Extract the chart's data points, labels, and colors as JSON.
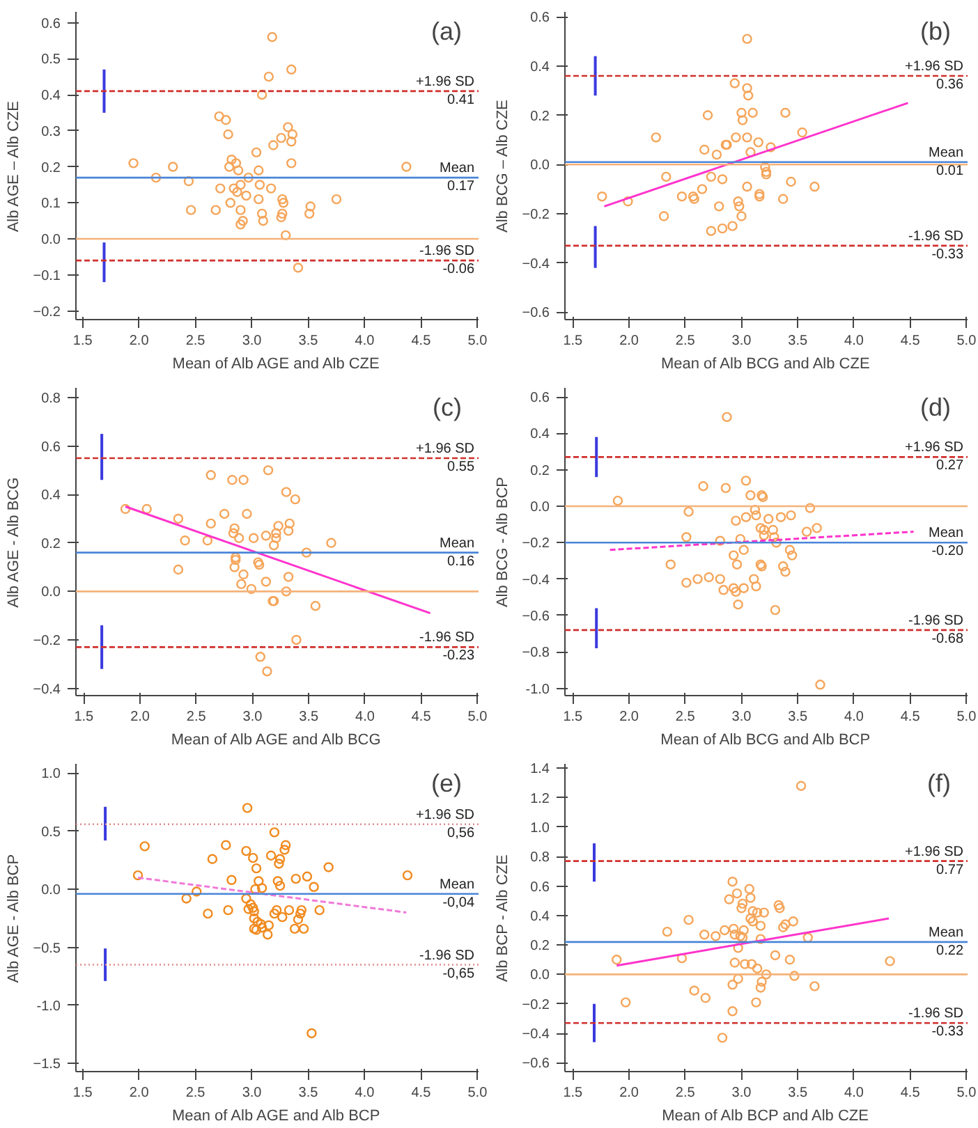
{
  "chart_data": [
    {
      "type": "scatter",
      "title": "(a)",
      "xlabel": "Mean of Alb AGE and Alb CZE",
      "ylabel": "Alb AGE – Alb CZE",
      "xlim": [
        1.44,
        5.01
      ],
      "ylim": [
        -0.224,
        0.63
      ],
      "xticks": [
        1.5,
        {
          "value": 2,
          "label": "2.0"
        },
        2.5,
        {
          "value": 3,
          "label": "3.0"
        },
        3.5,
        {
          "value": 4,
          "label": "4.0"
        },
        4.5,
        {
          "value": 5,
          "label": "5.0"
        }
      ],
      "yticks": [
        -0.2,
        -0.1,
        {
          "value": 0,
          "label": "0.0"
        },
        0.1,
        0.2,
        0.3,
        0.4,
        0.5,
        0.6
      ],
      "grid": false,
      "series": [
        {
          "marker": "circle",
          "color": "#f5a55a",
          "x": [
            3.18,
            3.35,
            3.15,
            3.09,
            2.71,
            2.77,
            2.79,
            3.32,
            3.26,
            3.36,
            3.35,
            3.19,
            3.04,
            1.95,
            2.3,
            2.82,
            2.86,
            2.8,
            3.35,
            4.37,
            3.06,
            2.88,
            2.15,
            2.97,
            2.44,
            2.72,
            2.84,
            3.07,
            3.17,
            2.9,
            2.87,
            2.95,
            2.81,
            3.06,
            3.27,
            3.28,
            3.75,
            2.46,
            2.68,
            2.9,
            3.52,
            3.09,
            3.27,
            3.26,
            3.51,
            2.92,
            2.9,
            3.1,
            3.3,
            3.41
          ],
          "values": [
            0.56,
            0.47,
            0.45,
            0.4,
            0.34,
            0.33,
            0.29,
            0.31,
            0.28,
            0.29,
            0.27,
            0.26,
            0.24,
            0.21,
            0.2,
            0.22,
            0.21,
            0.2,
            0.21,
            0.2,
            0.19,
            0.19,
            0.17,
            0.17,
            0.16,
            0.14,
            0.14,
            0.15,
            0.14,
            0.15,
            0.13,
            0.12,
            0.1,
            0.11,
            0.11,
            0.1,
            0.11,
            0.08,
            0.08,
            0.08,
            0.09,
            0.07,
            0.07,
            0.06,
            0.07,
            0.05,
            0.04,
            0.05,
            0.01,
            -0.08
          ]
        },
        {
          "type": "line",
          "marker": "none",
          "color": "#3a3adf",
          "x": [
            1.69,
            1.69
          ],
          "values": [
            0.35,
            0.47
          ]
        },
        {
          "type": "line",
          "marker": "none",
          "color": "#3a3adf",
          "x": [
            1.69,
            1.69
          ],
          "values": [
            -0.12,
            -0.01
          ]
        }
      ],
      "ref_lines": [
        {
          "axis": "y",
          "value": 0,
          "color": "#f5b27a",
          "line_style": "solid"
        },
        {
          "axis": "y",
          "value": 0.17,
          "label": "Mean",
          "color": "#4a86d8",
          "line_style": "solid"
        },
        {
          "axis": "y",
          "value": 0.41,
          "label": "+1.96 SD",
          "color": "#d0312d",
          "line_style": "dashed"
        },
        {
          "axis": "y",
          "value": -0.06,
          "label": "-1.96 SD",
          "color": "#d0312d",
          "line_style": "dashed"
        }
      ],
      "annotations": [
        {
          "text": "0.41",
          "y": 0.41
        },
        {
          "text": "0.17",
          "y": 0.17
        },
        {
          "text": "-0.06",
          "y": -0.06
        }
      ]
    },
    {
      "type": "scatter",
      "title": "(b)",
      "xlabel": "Mean of Alb BCG and Alb CZE",
      "ylabel": "Alb BCG – Alb CZE",
      "xlim": [
        1.43,
        5.01
      ],
      "ylim": [
        -0.63,
        0.62
      ],
      "xticks": [
        1.5,
        {
          "value": 2,
          "label": "2.0"
        },
        2.5,
        {
          "value": 3,
          "label": "3.0"
        },
        3.5,
        {
          "value": 4,
          "label": "4.0"
        },
        4.5,
        {
          "value": 5,
          "label": "5.0"
        }
      ],
      "yticks": [
        -0.6,
        -0.4,
        -0.2,
        {
          "value": 0,
          "label": "0.0"
        },
        0.2,
        0.4,
        0.6
      ],
      "grid": false,
      "series": [
        {
          "marker": "circle",
          "color": "#f5a55a",
          "x": [
            3.05,
            2.94,
            3.05,
            3.06,
            2.7,
            3.0,
            3.1,
            3.39,
            3.01,
            2.24,
            2.95,
            3.05,
            3.54,
            2.86,
            2.87,
            3.15,
            3.26,
            3.08,
            2.67,
            2.78,
            3.21,
            3.22,
            3.22,
            2.33,
            2.73,
            2.83,
            3.44,
            2.65,
            3.05,
            3.65,
            1.76,
            2.47,
            2.57,
            2.58,
            3.16,
            3.16,
            3.37,
            2.97,
            2.98,
            1.99,
            2.8,
            2.31,
            3.0,
            2.73,
            2.83,
            2.92
          ],
          "values": [
            0.51,
            0.33,
            0.31,
            0.28,
            0.2,
            0.21,
            0.21,
            0.21,
            0.18,
            0.11,
            0.11,
            0.11,
            0.13,
            0.08,
            0.08,
            0.09,
            0.07,
            0.05,
            0.06,
            0.04,
            -0.01,
            -0.03,
            -0.04,
            -0.05,
            -0.05,
            -0.06,
            -0.07,
            -0.1,
            -0.09,
            -0.09,
            -0.13,
            -0.13,
            -0.13,
            -0.14,
            -0.12,
            -0.13,
            -0.14,
            -0.15,
            -0.17,
            -0.15,
            -0.17,
            -0.21,
            -0.21,
            -0.27,
            -0.26,
            -0.25
          ]
        },
        {
          "type": "line",
          "marker": "none",
          "color": "#ff33cc",
          "x": [
            1.78,
            4.48
          ],
          "values": [
            -0.17,
            0.25
          ]
        },
        {
          "type": "line",
          "marker": "none",
          "color": "#3a3adf",
          "x": [
            1.7,
            1.7
          ],
          "values": [
            0.28,
            0.44
          ]
        },
        {
          "type": "line",
          "marker": "none",
          "color": "#3a3adf",
          "x": [
            1.7,
            1.7
          ],
          "values": [
            -0.42,
            -0.25
          ]
        }
      ],
      "ref_lines": [
        {
          "axis": "y",
          "value": 0,
          "color": "#f5b27a",
          "line_style": "solid"
        },
        {
          "axis": "y",
          "value": 0.01,
          "label": "Mean",
          "color": "#4a86d8",
          "line_style": "solid"
        },
        {
          "axis": "y",
          "value": 0.36,
          "label": "+1.96 SD",
          "color": "#d0312d",
          "line_style": "dashed"
        },
        {
          "axis": "y",
          "value": -0.33,
          "label": "-1.96 SD",
          "color": "#d0312d",
          "line_style": "dashed"
        }
      ],
      "annotations": [
        {
          "text": "0.36",
          "y": 0.36
        },
        {
          "text": "0.01",
          "y": 0.01
        },
        {
          "text": "-0.33",
          "y": -0.33
        }
      ]
    },
    {
      "type": "scatter",
      "title": "(c)",
      "xlabel": "Mean of Alb AGE and Alb BCG",
      "ylabel": "Alb AGE - Alb BCG",
      "xlim": [
        1.43,
        5.01
      ],
      "ylim": [
        -0.43,
        0.84
      ],
      "xticks": [
        1.5,
        {
          "value": 2,
          "label": "2.0"
        },
        2.5,
        {
          "value": 3,
          "label": "3.0"
        },
        3.5,
        {
          "value": 4,
          "label": "4.0"
        },
        4.5,
        {
          "value": 5,
          "label": "5.0"
        }
      ],
      "yticks": [
        -0.4,
        -0.2,
        {
          "value": 0,
          "label": "0.0"
        },
        0.2,
        0.4,
        0.6,
        0.8
      ],
      "grid": false,
      "series": [
        {
          "marker": "circle",
          "color": "#f5a55a",
          "x": [
            3.14,
            2.63,
            2.82,
            2.92,
            3.3,
            3.38,
            1.87,
            2.06,
            2.75,
            2.95,
            2.34,
            2.63,
            3.23,
            3.33,
            2.84,
            3.32,
            2.83,
            3.12,
            3.21,
            2.4,
            2.6,
            2.88,
            3.01,
            3.21,
            3.19,
            3.7,
            3.48,
            2.85,
            2.85,
            3.05,
            3.06,
            2.34,
            2.84,
            2.92,
            3.32,
            3.12,
            2.9,
            2.99,
            3.3,
            3.19,
            3.18,
            3.56,
            3.39,
            3.07,
            3.13
          ],
          "values": [
            0.5,
            0.48,
            0.46,
            0.46,
            0.41,
            0.38,
            0.34,
            0.34,
            0.32,
            0.32,
            0.3,
            0.28,
            0.27,
            0.28,
            0.26,
            0.25,
            0.24,
            0.23,
            0.24,
            0.21,
            0.21,
            0.22,
            0.22,
            0.22,
            0.19,
            0.2,
            0.16,
            0.14,
            0.13,
            0.12,
            0.11,
            0.09,
            0.1,
            0.07,
            0.06,
            0.04,
            0.03,
            0.01,
            0.0,
            -0.04,
            -0.04,
            -0.06,
            -0.2,
            -0.27,
            -0.33
          ]
        },
        {
          "type": "line",
          "marker": "none",
          "color": "#ff33cc",
          "x": [
            1.87,
            4.58
          ],
          "values": [
            0.35,
            -0.09
          ]
        },
        {
          "type": "line",
          "marker": "none",
          "color": "#3a3adf",
          "x": [
            1.66,
            1.66
          ],
          "values": [
            0.46,
            0.65
          ]
        },
        {
          "type": "line",
          "marker": "none",
          "color": "#3a3adf",
          "x": [
            1.66,
            1.66
          ],
          "values": [
            -0.32,
            -0.14
          ]
        }
      ],
      "ref_lines": [
        {
          "axis": "y",
          "value": 0,
          "color": "#f5b27a",
          "line_style": "solid"
        },
        {
          "axis": "y",
          "value": 0.16,
          "label": "Mean",
          "color": "#4a86d8",
          "line_style": "solid"
        },
        {
          "axis": "y",
          "value": 0.55,
          "label": "+1.96 SD",
          "color": "#d0312d",
          "line_style": "dashed"
        },
        {
          "axis": "y",
          "value": -0.23,
          "label": "-1.96 SD",
          "color": "#d0312d",
          "line_style": "dashed"
        }
      ],
      "annotations": [
        {
          "text": "0.55",
          "y": 0.55
        },
        {
          "text": "0.16",
          "y": 0.16
        },
        {
          "text": "-0.23",
          "y": -0.23
        }
      ]
    },
    {
      "type": "scatter",
      "title": "(d)",
      "xlabel": "Mean of Alb BCG and Alb BCP",
      "ylabel": "Alb BCG - Alb BCP",
      "xlim": [
        1.43,
        5.01
      ],
      "ylim": [
        -1.04,
        0.65
      ],
      "xticks": [
        1.5,
        {
          "value": 2,
          "label": "2.0"
        },
        2.5,
        {
          "value": 3,
          "label": "3.0"
        },
        3.5,
        {
          "value": 4,
          "label": "4.0"
        },
        4.5,
        {
          "value": 5,
          "label": "5.0"
        }
      ],
      "yticks": [
        {
          "value": -1,
          "label": "-1.0"
        },
        -0.8,
        -0.6,
        -0.4,
        -0.2,
        {
          "value": 0,
          "label": "0.0"
        },
        0.2,
        0.4,
        0.6
      ],
      "grid": false,
      "series": [
        {
          "marker": "circle",
          "color": "#f5a55a",
          "x": [
            2.87,
            3.04,
            2.66,
            2.86,
            3.08,
            3.18,
            3.19,
            1.9,
            3.61,
            3.12,
            2.53,
            3.13,
            3.04,
            3.35,
            3.44,
            3.24,
            2.95,
            3.67,
            3.17,
            3.28,
            3.2,
            3.58,
            3.2,
            3.29,
            2.51,
            2.99,
            2.81,
            3.31,
            3.43,
            3.02,
            2.93,
            3.45,
            2.96,
            3.17,
            3.18,
            2.37,
            3.37,
            3.39,
            2.61,
            2.71,
            2.81,
            3.11,
            2.51,
            3.13,
            2.93,
            3.02,
            2.84,
            2.95,
            2.97,
            3.3,
            3.7
          ],
          "values": [
            0.49,
            0.14,
            0.11,
            0.1,
            0.06,
            0.06,
            0.05,
            0.03,
            -0.01,
            -0.02,
            -0.03,
            -0.05,
            -0.06,
            -0.06,
            -0.05,
            -0.07,
            -0.08,
            -0.12,
            -0.12,
            -0.13,
            -0.13,
            -0.14,
            -0.16,
            -0.17,
            -0.17,
            -0.18,
            -0.19,
            -0.2,
            -0.24,
            -0.24,
            -0.27,
            -0.27,
            -0.32,
            -0.32,
            -0.33,
            -0.32,
            -0.33,
            -0.36,
            -0.4,
            -0.39,
            -0.4,
            -0.4,
            -0.42,
            -0.44,
            -0.45,
            -0.45,
            -0.46,
            -0.47,
            -0.54,
            -0.57,
            -0.98
          ]
        },
        {
          "type": "line",
          "marker": "none",
          "color": "#ff33cc",
          "line_style": "dashed",
          "x": [
            1.83,
            4.53
          ],
          "values": [
            -0.24,
            -0.14
          ]
        },
        {
          "type": "line",
          "marker": "none",
          "color": "#3a3adf",
          "x": [
            1.71,
            1.71
          ],
          "values": [
            0.16,
            0.38
          ]
        },
        {
          "type": "line",
          "marker": "none",
          "color": "#3a3adf",
          "x": [
            1.71,
            1.71
          ],
          "values": [
            -0.78,
            -0.56
          ]
        }
      ],
      "ref_lines": [
        {
          "axis": "y",
          "value": 0,
          "color": "#f5b27a",
          "line_style": "solid"
        },
        {
          "axis": "y",
          "value": -0.2,
          "label": "Mean",
          "color": "#4a86d8",
          "line_style": "solid"
        },
        {
          "axis": "y",
          "value": 0.27,
          "label": "+1.96 SD",
          "color": "#d0312d",
          "line_style": "dashed"
        },
        {
          "axis": "y",
          "value": -0.68,
          "label": "-1.96 SD",
          "color": "#d0312d",
          "line_style": "dashed"
        }
      ],
      "annotations": [
        {
          "text": "0.27",
          "y": 0.27
        },
        {
          "text": "-0.20",
          "y": -0.2
        },
        {
          "text": "-0.68",
          "y": -0.68
        }
      ]
    },
    {
      "type": "scatter",
      "title": "(e)",
      "xlabel": "Mean of Alb AGE and Alb BCP",
      "ylabel": "Alb AGE - Alb BCP",
      "xlim": [
        1.44,
        5.01
      ],
      "ylim": [
        -1.57,
        1.08
      ],
      "xticks": [
        1.5,
        {
          "value": 2,
          "label": "2.0"
        },
        2.5,
        {
          "value": 3,
          "label": "3.0"
        },
        3.5,
        {
          "value": 4,
          "label": "4.0"
        },
        4.5,
        {
          "value": 5,
          "label": "5.0"
        }
      ],
      "yticks": [
        -1.5,
        {
          "value": -1,
          "label": "-1.0"
        },
        -0.5,
        {
          "value": 0,
          "label": "0.0"
        },
        0.5,
        {
          "value": 1,
          "label": "1.0"
        }
      ],
      "grid": false,
      "series": [
        {
          "marker": "circle",
          "color": "#f08a1e",
          "x": [
            2.96,
            3.2,
            2.05,
            2.77,
            3.3,
            3.29,
            2.95,
            3.17,
            2.65,
            3.01,
            3.25,
            3.24,
            3.68,
            3.04,
            1.99,
            4.38,
            3.49,
            3.39,
            2.82,
            3.06,
            3.23,
            3.25,
            3.55,
            3.09,
            3.03,
            2.51,
            2.42,
            2.95,
            2.99,
            3.01,
            2.97,
            3.02,
            3.22,
            3.2,
            3.33,
            3.44,
            3.6,
            2.79,
            2.61,
            3.43,
            3.27,
            3.02,
            3.41,
            3.05,
            3.08,
            3.15,
            3.09,
            3.02,
            3.04,
            3.38,
            3.46,
            3.14,
            3.53
          ],
          "values": [
            0.7,
            0.49,
            0.37,
            0.38,
            0.38,
            0.34,
            0.33,
            0.29,
            0.26,
            0.27,
            0.26,
            0.22,
            0.19,
            0.18,
            0.12,
            0.12,
            0.11,
            0.09,
            0.08,
            0.07,
            0.07,
            0.03,
            0.02,
            0.01,
            0.0,
            -0.02,
            -0.08,
            -0.08,
            -0.13,
            -0.16,
            -0.17,
            -0.19,
            -0.18,
            -0.21,
            -0.18,
            -0.18,
            -0.18,
            -0.18,
            -0.21,
            -0.21,
            -0.24,
            -0.25,
            -0.26,
            -0.28,
            -0.3,
            -0.31,
            -0.33,
            -0.34,
            -0.35,
            -0.34,
            -0.34,
            -0.39,
            -1.24
          ]
        },
        {
          "type": "line",
          "marker": "none",
          "color": "#f07ad8",
          "line_style": "dashed",
          "x": [
            1.99,
            4.37
          ],
          "values": [
            0.1,
            -0.2
          ]
        },
        {
          "type": "line",
          "marker": "none",
          "color": "#3a3adf",
          "x": [
            1.7,
            1.7
          ],
          "values": [
            0.42,
            0.71
          ]
        },
        {
          "type": "line",
          "marker": "none",
          "color": "#3a3adf",
          "x": [
            1.7,
            1.7
          ],
          "values": [
            -0.79,
            -0.51
          ]
        }
      ],
      "ref_lines": [
        {
          "axis": "y",
          "value": -0.04,
          "label": "Mean",
          "color": "#4a86d8",
          "line_style": "solid"
        },
        {
          "axis": "y",
          "value": 0.56,
          "label": "+1.96 SD",
          "color": "#e08a8a",
          "line_style": "dotted"
        },
        {
          "axis": "y",
          "value": -0.65,
          "label": "-1.96 SD",
          "color": "#e08a8a",
          "line_style": "dotted"
        }
      ],
      "annotations": [
        {
          "text": "0,56",
          "y": 0.56
        },
        {
          "text": "-0,04",
          "y": -0.04
        },
        {
          "text": "-0,65",
          "y": -0.65
        }
      ]
    },
    {
      "type": "scatter",
      "title": "(f)",
      "xlabel": "Mean of Alb BCP and Alb CZE",
      "ylabel": "Alb BCP - Alb CZE",
      "xlim": [
        1.43,
        5.01
      ],
      "ylim": [
        -0.66,
        1.43
      ],
      "xticks": [
        1.5,
        {
          "value": 2,
          "label": "2.0"
        },
        2.5,
        {
          "value": 3,
          "label": "3.0"
        },
        3.5,
        {
          "value": 4,
          "label": "4.0"
        },
        4.5,
        {
          "value": 5,
          "label": "5.0"
        }
      ],
      "yticks": [
        -0.6,
        -0.4,
        -0.2,
        {
          "value": 0,
          "label": "0.0"
        },
        0.2,
        0.4,
        0.6,
        0.8,
        {
          "value": 1,
          "label": "1.0"
        },
        1.2,
        1.4
      ],
      "grid": false,
      "series": [
        {
          "marker": "circle",
          "color": "#f5a55a",
          "x": [
            3.53,
            2.92,
            3.07,
            2.96,
            2.89,
            3.08,
            3.01,
            3.33,
            3.34,
            3.0,
            3.1,
            3.14,
            3.2,
            3.08,
            3.1,
            3.46,
            2.53,
            3.39,
            3.17,
            3.37,
            2.85,
            2.93,
            3.02,
            2.34,
            2.67,
            2.77,
            2.94,
            2.99,
            3.01,
            3.17,
            3.59,
            2.97,
            3.3,
            2.47,
            1.89,
            3.43,
            4.32,
            2.94,
            3.03,
            3.09,
            3.14,
            3.22,
            3.47,
            2.97,
            3.18,
            3.17,
            3.65,
            2.92,
            2.58,
            2.68,
            1.97,
            3.13,
            2.92,
            2.83
          ],
          "values": [
            1.28,
            0.63,
            0.58,
            0.55,
            0.51,
            0.52,
            0.48,
            0.47,
            0.45,
            0.45,
            0.43,
            0.42,
            0.42,
            0.38,
            0.36,
            0.36,
            0.37,
            0.34,
            0.33,
            0.32,
            0.3,
            0.31,
            0.3,
            0.29,
            0.27,
            0.26,
            0.27,
            0.26,
            0.25,
            0.24,
            0.25,
            0.18,
            0.13,
            0.11,
            0.1,
            0.1,
            0.09,
            0.08,
            0.07,
            0.07,
            0.04,
            0.0,
            -0.01,
            -0.03,
            -0.05,
            -0.09,
            -0.08,
            -0.07,
            -0.11,
            -0.16,
            -0.19,
            -0.19,
            -0.25,
            -0.43
          ]
        },
        {
          "type": "line",
          "marker": "none",
          "color": "#ff33cc",
          "x": [
            1.89,
            4.31
          ],
          "values": [
            0.06,
            0.38
          ]
        },
        {
          "type": "line",
          "marker": "none",
          "color": "#3a3adf",
          "x": [
            1.69,
            1.69
          ],
          "values": [
            0.63,
            0.89
          ]
        },
        {
          "type": "line",
          "marker": "none",
          "color": "#3a3adf",
          "x": [
            1.69,
            1.69
          ],
          "values": [
            -0.46,
            -0.2
          ]
        }
      ],
      "ref_lines": [
        {
          "axis": "y",
          "value": 0,
          "color": "#f5b27a",
          "line_style": "solid"
        },
        {
          "axis": "y",
          "value": 0.22,
          "label": "Mean",
          "color": "#4a86d8",
          "line_style": "solid"
        },
        {
          "axis": "y",
          "value": 0.77,
          "label": "+1.96 SD",
          "color": "#d0312d",
          "line_style": "dashed"
        },
        {
          "axis": "y",
          "value": -0.33,
          "label": "-1.96 SD",
          "color": "#d0312d",
          "line_style": "dashed"
        }
      ],
      "annotations": [
        {
          "text": "0.77",
          "y": 0.77
        },
        {
          "text": "0.22",
          "y": 0.22
        },
        {
          "text": "-0.33",
          "y": -0.33
        }
      ]
    }
  ]
}
